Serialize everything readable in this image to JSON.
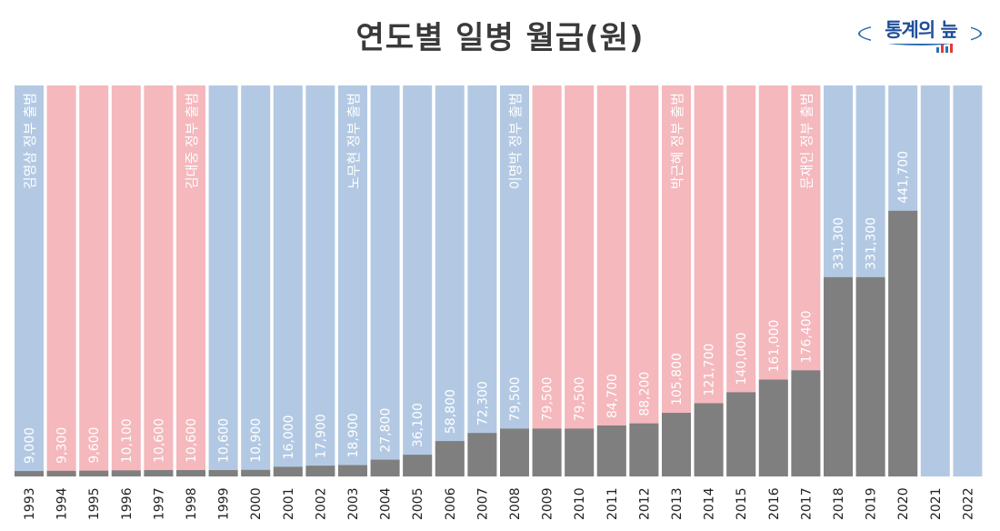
{
  "title": "연도별 일병 월급(원)",
  "logo": {
    "text": "통계의 늪",
    "colors": [
      "#2f6db5",
      "#e23b3b"
    ]
  },
  "colors": {
    "blue_band": "#b3c9e3",
    "pink_band": "#f4b8bd",
    "bar": "#7f7f7f"
  },
  "chart_data": {
    "type": "bar",
    "title": "연도별 일병 월급(원)",
    "categories": [
      "1993",
      "1994",
      "1995",
      "1996",
      "1997",
      "1998",
      "1999",
      "2000",
      "2001",
      "2002",
      "2003",
      "2004",
      "2005",
      "2006",
      "2007",
      "2008",
      "2009",
      "2010",
      "2011",
      "2012",
      "2013",
      "2014",
      "2015",
      "2016",
      "2017",
      "2018",
      "2019",
      "2020",
      "2021",
      "2022"
    ],
    "series": [
      {
        "values": [
          9000,
          9300,
          9600,
          10100,
          10600,
          10600,
          10600,
          10900,
          16000,
          17900,
          18900,
          27800,
          36100,
          58800,
          72300,
          79500,
          79500,
          79500,
          84700,
          88200,
          105800,
          121700,
          140000,
          161000,
          176400,
          331300,
          331300,
          441700,
          null,
          null
        ]
      }
    ],
    "value_labels": [
      "9,000",
      "9,300",
      "9,600",
      "10,100",
      "10,600",
      "10,600",
      "10,600",
      "10,900",
      "16,000",
      "17,900",
      "18,900",
      "27,800",
      "36,100",
      "58,800",
      "72,300",
      "79,500",
      "79,500",
      "79,500",
      "84,700",
      "88,200",
      "105,800",
      "121,700",
      "140,000",
      "161,000",
      "176,400",
      "331,300",
      "331,300",
      "441,700",
      "",
      ""
    ],
    "background_bands": [
      "blue",
      "pink",
      "pink",
      "pink",
      "pink",
      "pink",
      "blue",
      "blue",
      "blue",
      "blue",
      "blue",
      "blue",
      "blue",
      "blue",
      "blue",
      "blue",
      "pink",
      "pink",
      "pink",
      "pink",
      "pink",
      "pink",
      "pink",
      "pink",
      "pink",
      "blue",
      "blue",
      "blue",
      "blue",
      "blue"
    ],
    "annotations": [
      {
        "index": 0,
        "text": "김영삼 정부 출범"
      },
      {
        "index": 5,
        "text": "김대중 정부 출범"
      },
      {
        "index": 10,
        "text": "노무현 정부 출범"
      },
      {
        "index": 15,
        "text": "이명박 정부 출범"
      },
      {
        "index": 20,
        "text": "박근혜 정부 출범"
      },
      {
        "index": 24,
        "text": "문재인 정부 출범"
      }
    ],
    "ylim": [
      0,
      650000
    ],
    "grid": false,
    "legend": "none"
  }
}
